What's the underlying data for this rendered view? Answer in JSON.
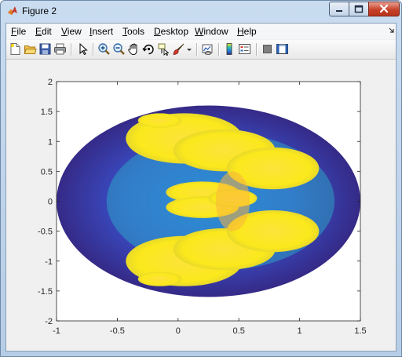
{
  "window": {
    "title": "Figure 2"
  },
  "menu": {
    "items": [
      {
        "id": "file",
        "label": "File"
      },
      {
        "id": "edit",
        "label": "Edit"
      },
      {
        "id": "view",
        "label": "View"
      },
      {
        "id": "insert",
        "label": "Insert"
      },
      {
        "id": "tools",
        "label": "Tools"
      },
      {
        "id": "desktop",
        "label": "Desktop"
      },
      {
        "id": "window",
        "label": "Window"
      },
      {
        "id": "help",
        "label": "Help"
      }
    ]
  },
  "toolbar": {
    "tools": [
      {
        "id": "new-figure",
        "icon": "new-document-icon"
      },
      {
        "id": "open-file",
        "icon": "open-folder-icon"
      },
      {
        "id": "save-figure",
        "icon": "save-disk-icon"
      },
      {
        "id": "print-figure",
        "icon": "printer-icon"
      },
      {
        "id": "edit-plot",
        "icon": "pointer-arrow-icon"
      },
      {
        "id": "zoom-in",
        "icon": "zoom-in-icon"
      },
      {
        "id": "zoom-out",
        "icon": "zoom-out-icon"
      },
      {
        "id": "pan",
        "icon": "hand-pan-icon"
      },
      {
        "id": "rotate-3d",
        "icon": "rotate-3d-icon"
      },
      {
        "id": "data-cursor",
        "icon": "data-cursor-icon"
      },
      {
        "id": "brush",
        "icon": "brush-icon"
      },
      {
        "id": "link-plot",
        "icon": "link-plot-icon"
      },
      {
        "id": "insert-colorbar",
        "icon": "colorbar-icon"
      },
      {
        "id": "insert-legend",
        "icon": "legend-icon"
      },
      {
        "id": "hide-plot-tools",
        "icon": "hide-plot-tools-icon"
      },
      {
        "id": "show-plot-tools",
        "icon": "show-plot-tools-icon"
      }
    ]
  },
  "chart_data": {
    "type": "heatmap",
    "title": "",
    "xlabel": "",
    "ylabel": "",
    "xlim": [
      -1,
      1.5
    ],
    "ylim": [
      -2,
      2
    ],
    "x_ticks": [
      "-1",
      "-0.5",
      "0",
      "0.5",
      "1",
      "1.5"
    ],
    "y_ticks": [
      "2",
      "1.5",
      "1",
      "0.5",
      "0",
      "-0.5",
      "-1",
      "-1.5",
      "-2"
    ],
    "grid": false,
    "colormap": "parula",
    "colors": {
      "low": "#352a87",
      "mid": "#2d6ee0",
      "cyan": "#2bb6c9",
      "high": "#fbe81c",
      "orange": "#f9b43a"
    },
    "domain_ellipse": {
      "cx": 0.25,
      "cy": 0.0,
      "rx": 1.25,
      "ry": 1.6
    },
    "blobs": [
      {
        "cx": 0.05,
        "cy": 1.05,
        "rx": 0.48,
        "ry": 0.42
      },
      {
        "cx": 0.38,
        "cy": 0.85,
        "rx": 0.42,
        "ry": 0.35
      },
      {
        "cx": 0.78,
        "cy": 0.55,
        "rx": 0.38,
        "ry": 0.35
      },
      {
        "cx": 0.2,
        "cy": 0.15,
        "rx": 0.3,
        "ry": 0.18
      },
      {
        "cx": 0.05,
        "cy": -1.0,
        "rx": 0.48,
        "ry": 0.42
      },
      {
        "cx": 0.38,
        "cy": -0.8,
        "rx": 0.42,
        "ry": 0.35
      },
      {
        "cx": 0.78,
        "cy": -0.5,
        "rx": 0.38,
        "ry": 0.35
      },
      {
        "cx": 0.2,
        "cy": -0.1,
        "rx": 0.3,
        "ry": 0.18
      },
      {
        "cx": -0.15,
        "cy": 1.35,
        "rx": 0.18,
        "ry": 0.12
      },
      {
        "cx": -0.15,
        "cy": -1.3,
        "rx": 0.18,
        "ry": 0.12
      },
      {
        "cx": 0.45,
        "cy": 0.05,
        "rx": 0.2,
        "ry": 0.15
      }
    ]
  }
}
